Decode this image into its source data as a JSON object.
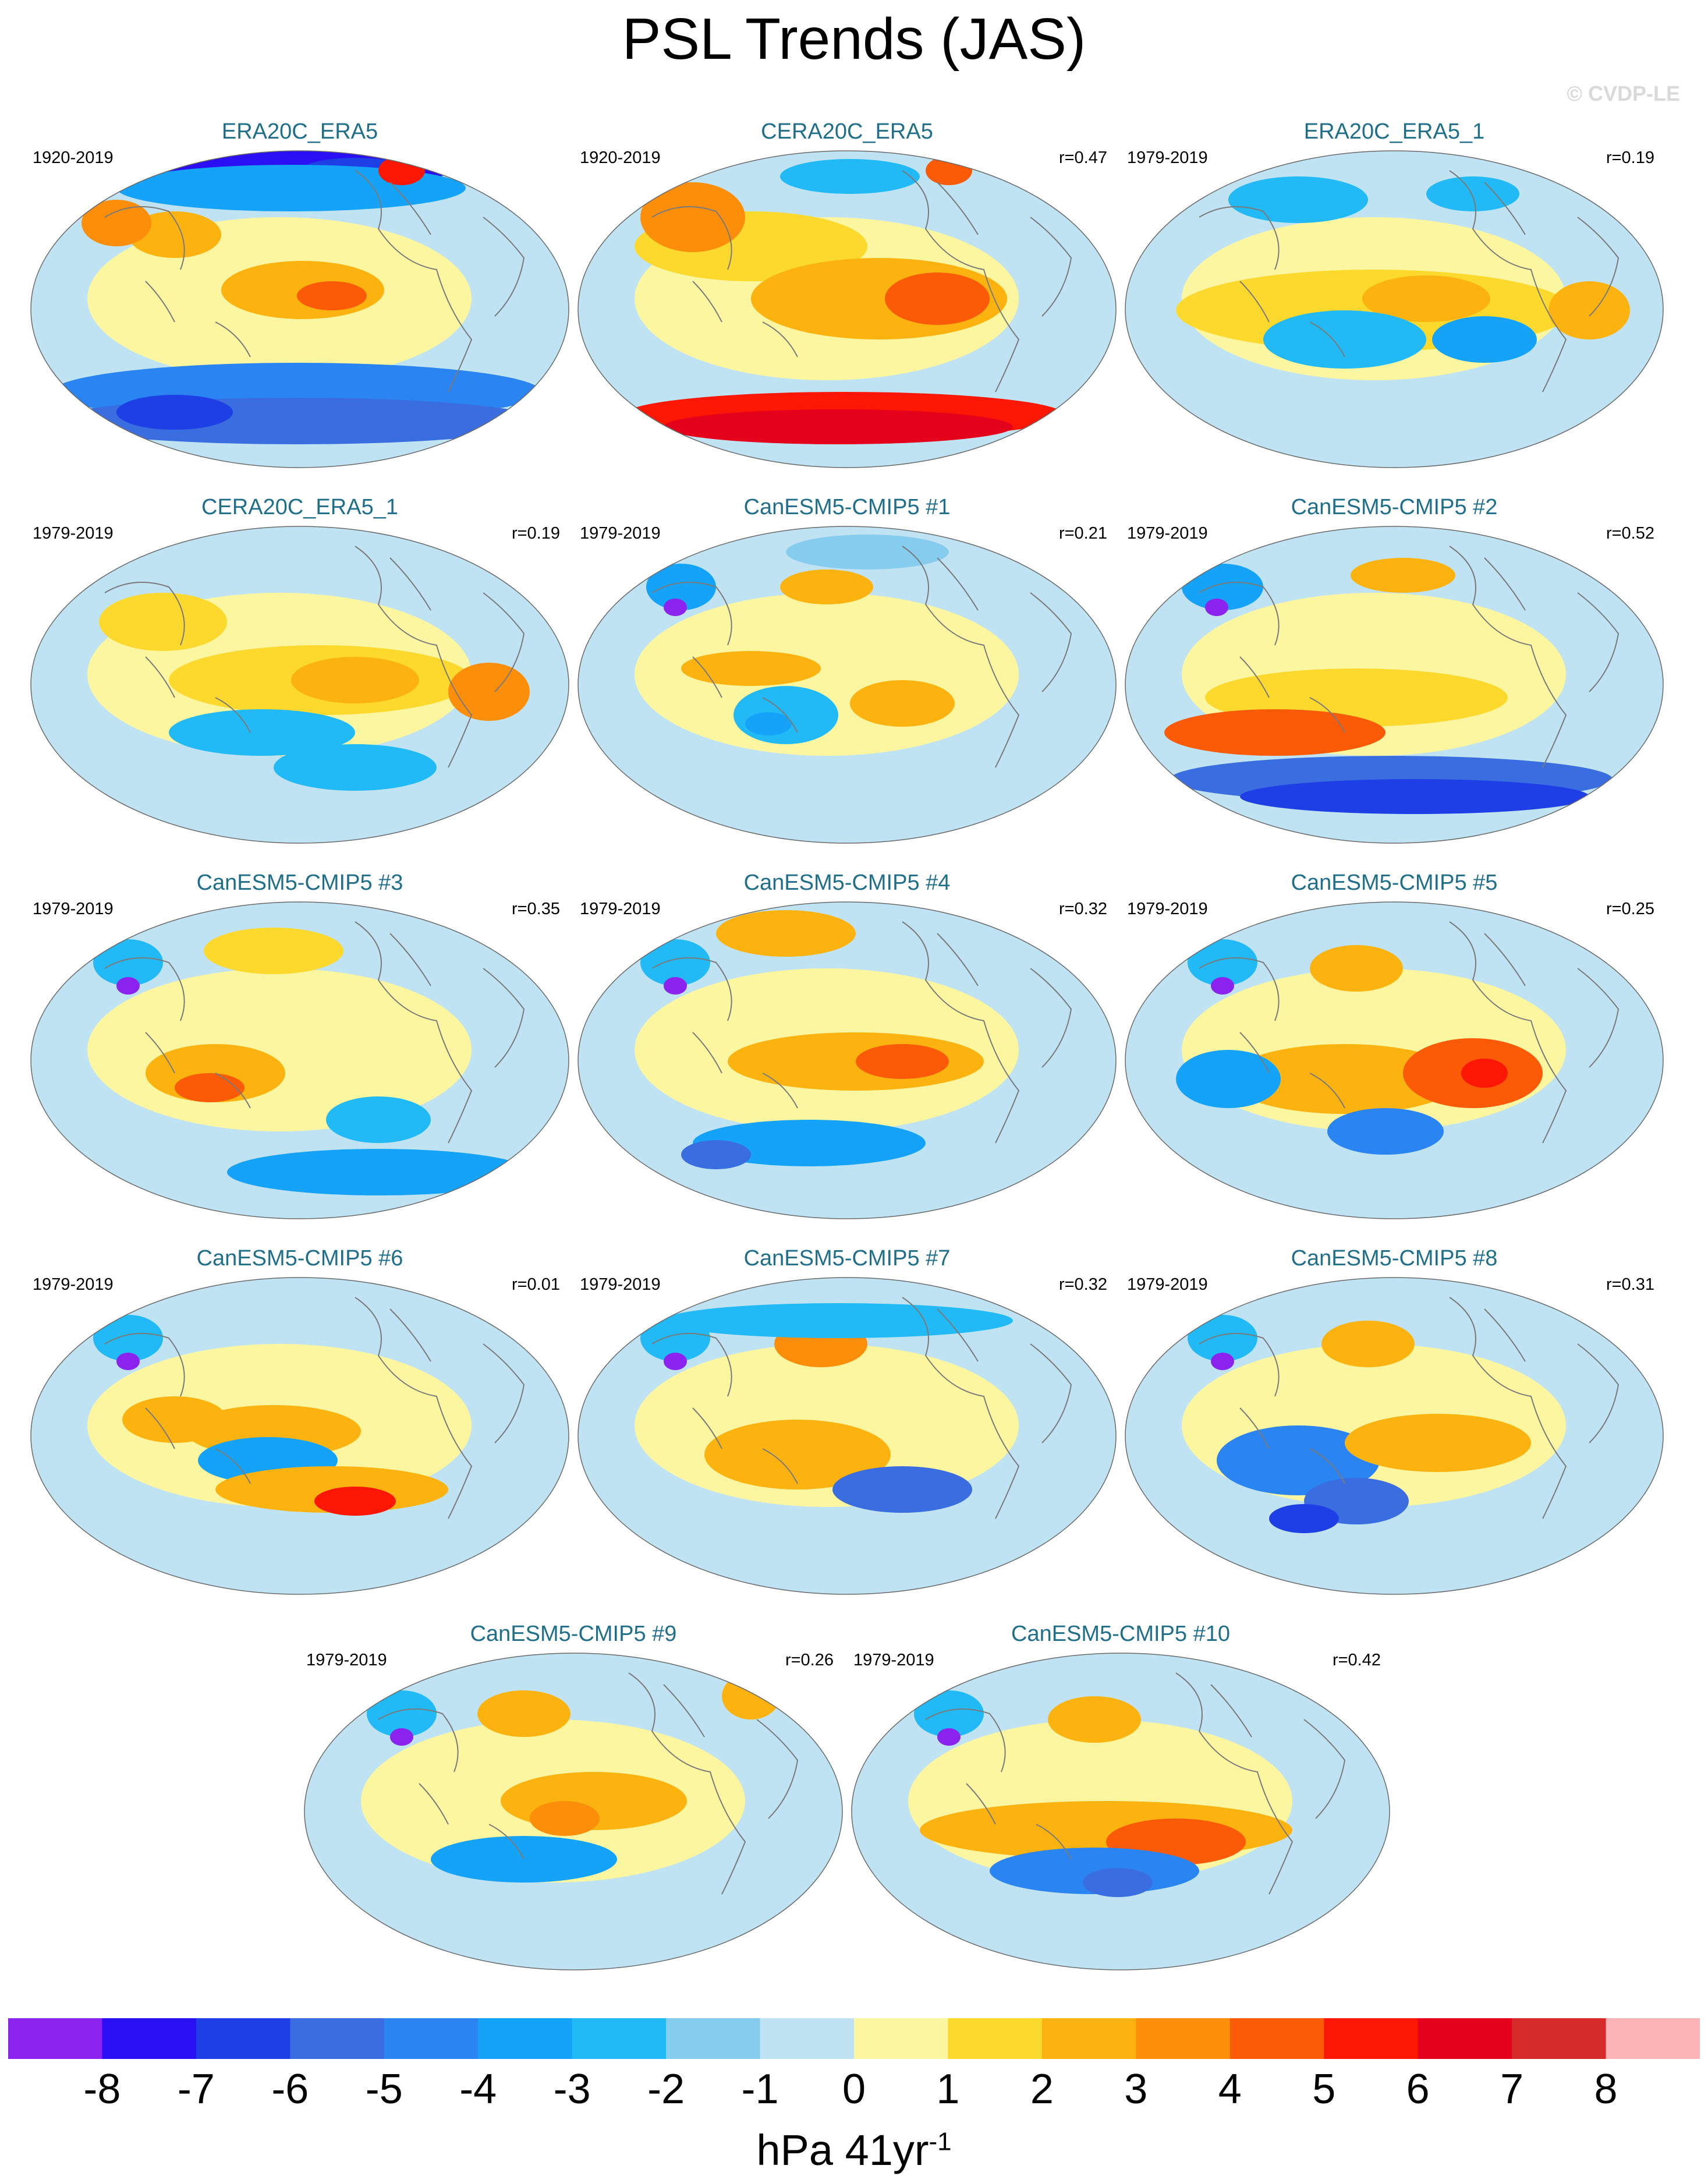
{
  "title": "PSL Trends (JAS)",
  "copyright": "© CVDP-LE",
  "colorbar": {
    "units": "hPa 41yr",
    "units_superscript": "-1",
    "tick_labels": [
      "-8",
      "-7",
      "-6",
      "-5",
      "-4",
      "-3",
      "-2",
      "-1",
      "0",
      "1",
      "2",
      "3",
      "4",
      "5",
      "6",
      "7",
      "8"
    ],
    "colors": [
      "#8b22ee",
      "#2a0ff5",
      "#1f3fe6",
      "#3a6ee0",
      "#2a84f2",
      "#14a3f8",
      "#22baf6",
      "#86ccef",
      "#bfe3f2",
      "#fdf6a0",
      "#fcd92c",
      "#fcb30f",
      "#fc8e0a",
      "#fb5a06",
      "#fc1604",
      "#e5001b",
      "#d62a2a",
      "#fdb4b6"
    ]
  },
  "chart_data": {
    "type": "heatmap",
    "variable": "PSL",
    "season": "JAS",
    "units": "hPa 41yr-1",
    "value_range": [
      -8,
      8
    ],
    "levels": [
      -8,
      -7,
      -6,
      -5,
      -4,
      -3,
      -2,
      -1,
      0,
      1,
      2,
      3,
      4,
      5,
      6,
      7,
      8
    ],
    "panels": [
      {
        "name": "ERA20C_ERA5",
        "period": "1920-2019",
        "r": ""
      },
      {
        "name": "CERA20C_ERA5",
        "period": "1920-2019",
        "r": "r=0.47"
      },
      {
        "name": "ERA20C_ERA5_1",
        "period": "1979-2019",
        "r": "r=0.19"
      },
      {
        "name": "CERA20C_ERA5_1",
        "period": "1979-2019",
        "r": "r=0.19"
      },
      {
        "name": "CanESM5-CMIP5 #1",
        "period": "1979-2019",
        "r": "r=0.21"
      },
      {
        "name": "CanESM5-CMIP5 #2",
        "period": "1979-2019",
        "r": "r=0.52"
      },
      {
        "name": "CanESM5-CMIP5 #3",
        "period": "1979-2019",
        "r": "r=0.35"
      },
      {
        "name": "CanESM5-CMIP5 #4",
        "period": "1979-2019",
        "r": "r=0.32"
      },
      {
        "name": "CanESM5-CMIP5 #5",
        "period": "1979-2019",
        "r": "r=0.25"
      },
      {
        "name": "CanESM5-CMIP5 #6",
        "period": "1979-2019",
        "r": "r=0.01"
      },
      {
        "name": "CanESM5-CMIP5 #7",
        "period": "1979-2019",
        "r": "r=0.32"
      },
      {
        "name": "CanESM5-CMIP5 #8",
        "period": "1979-2019",
        "r": "r=0.31"
      },
      {
        "name": "CanESM5-CMIP5 #9",
        "period": "1979-2019",
        "r": "r=0.26"
      },
      {
        "name": "CanESM5-CMIP5 #10",
        "period": "1979-2019",
        "r": "r=0.42"
      }
    ]
  }
}
